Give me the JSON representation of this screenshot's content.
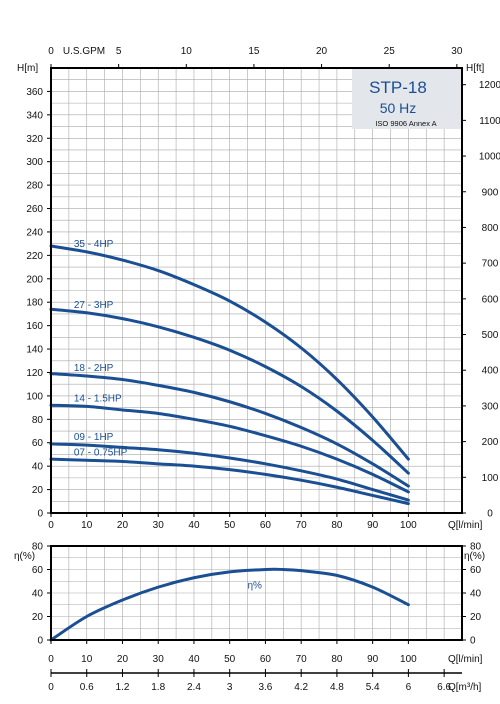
{
  "chart_data": [
    {
      "type": "line",
      "title": "STP-18",
      "subtitle": "50 Hz",
      "note": "ISO 9906 Annex A",
      "xlabel": "Q[l/min]",
      "ylabel_left": "H[m]",
      "ylabel_right": "H[ft]",
      "xlabel_top": "U.S.GPM",
      "xlim": [
        0,
        115
      ],
      "ylim": [
        0,
        380
      ],
      "x_ticks": [
        0,
        10,
        20,
        30,
        40,
        50,
        60,
        70,
        80,
        90,
        100
      ],
      "y_ticks": [
        0,
        20,
        40,
        60,
        80,
        100,
        120,
        140,
        160,
        180,
        200,
        220,
        240,
        260,
        280,
        300,
        320,
        340,
        360
      ],
      "y_ticks_right_ft": [
        0,
        100,
        200,
        300,
        400,
        500,
        600,
        700,
        800,
        900,
        1000,
        1100,
        1200
      ],
      "x_ticks_top_gpm": [
        0,
        5,
        10,
        15,
        20,
        25,
        30
      ],
      "grid": true,
      "series": [
        {
          "name": "35 - 4HP",
          "x": [
            0,
            10,
            20,
            30,
            40,
            50,
            60,
            70,
            80,
            90,
            100
          ],
          "y": [
            228,
            223,
            216,
            207,
            195,
            181,
            163,
            141,
            114,
            82,
            46
          ]
        },
        {
          "name": "27 - 3HP",
          "x": [
            0,
            10,
            20,
            30,
            40,
            50,
            60,
            70,
            80,
            90,
            100
          ],
          "y": [
            174,
            171,
            166,
            159,
            150,
            139,
            125,
            108,
            87,
            62,
            34
          ]
        },
        {
          "name": "18 - 2HP",
          "x": [
            0,
            10,
            20,
            30,
            40,
            50,
            60,
            70,
            80,
            90,
            100
          ],
          "y": [
            119,
            117,
            114,
            109,
            103,
            95,
            85,
            73,
            59,
            42,
            23
          ]
        },
        {
          "name": "14 - 1.5HP",
          "x": [
            0,
            10,
            20,
            30,
            40,
            50,
            60,
            70,
            80,
            90,
            100
          ],
          "y": [
            92,
            91,
            88,
            85,
            80,
            74,
            66,
            57,
            46,
            33,
            18
          ]
        },
        {
          "name": "09 - 1HP",
          "x": [
            0,
            10,
            20,
            30,
            40,
            50,
            60,
            70,
            80,
            90,
            100
          ],
          "y": [
            59,
            58,
            56,
            54,
            51,
            47,
            42,
            36,
            29,
            20,
            11
          ]
        },
        {
          "name": "07 - 0.75HP",
          "x": [
            0,
            10,
            20,
            30,
            40,
            50,
            60,
            70,
            80,
            90,
            100
          ],
          "y": [
            46,
            45,
            44,
            42,
            40,
            37,
            33,
            28,
            22,
            15,
            8
          ]
        }
      ]
    },
    {
      "type": "line",
      "xlabel": "Q[l/min]",
      "xlabel_m3h": "Q[m³/h]",
      "ylabel_left": "η(%)",
      "ylabel_right": "η(%)",
      "xlim": [
        0,
        115
      ],
      "ylim": [
        0,
        80
      ],
      "x_ticks": [
        0,
        10,
        20,
        30,
        40,
        50,
        60,
        70,
        80,
        90,
        100
      ],
      "x_ticks_m3h": [
        "0",
        "0.6",
        "1.2",
        "1.8",
        "2.4",
        "3",
        "3.6",
        "4.2",
        "4.8",
        "5.4",
        "6",
        "6.6"
      ],
      "y_ticks": [
        0,
        20,
        40,
        60,
        80
      ],
      "grid": true,
      "series": [
        {
          "name": "η%",
          "x": [
            0,
            10,
            20,
            30,
            40,
            50,
            60,
            65,
            70,
            80,
            90,
            100
          ],
          "y": [
            0,
            20,
            34,
            45,
            53,
            58,
            60,
            60,
            59,
            55,
            45,
            30
          ]
        }
      ]
    }
  ]
}
